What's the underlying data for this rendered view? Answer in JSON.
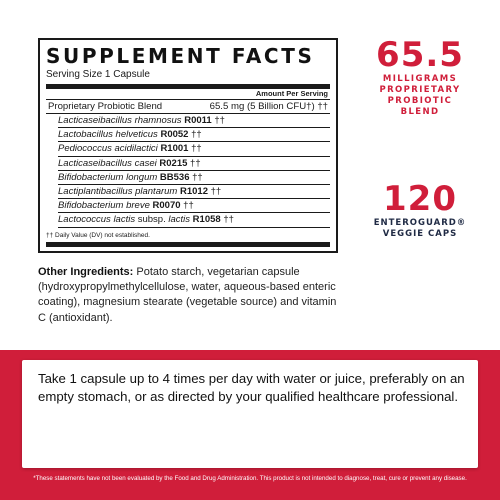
{
  "facts": {
    "title": "SUPPLEMENT FACTS",
    "serving": "Serving Size 1 Capsule",
    "amount_header": "Amount Per Serving",
    "blend_name": "Proprietary Probiotic Blend",
    "blend_amount": "65.5 mg (5 Billion CFU†) ††",
    "strains": [
      {
        "sci": "Lacticaseibacillus rhamnosus",
        "code": "R0011",
        "mark": "††"
      },
      {
        "sci": "Lactobacillus helveticus",
        "code": "R0052",
        "mark": "††"
      },
      {
        "sci": "Pediococcus acidilactici",
        "code": "R1001",
        "mark": "††"
      },
      {
        "sci": "Lacticaseibacillus casei",
        "code": "R0215",
        "mark": "††"
      },
      {
        "sci": "Bifidobacterium longum",
        "code": "BB536",
        "mark": "††"
      },
      {
        "sci": "Lactiplantibacillus plantarum",
        "code": "R1012",
        "mark": "††"
      },
      {
        "sci": "Bifidobacterium breve",
        "code": "R0070",
        "mark": "††"
      },
      {
        "sci": "Lactococcus lactis",
        "sub": " subsp. ",
        "sub2": "lactis",
        "code": "R1058",
        "mark": "††"
      }
    ],
    "footnote": "†† Daily Value (DV) not established."
  },
  "stat1": {
    "value": "65.5",
    "line1": "MILLIGRAMS",
    "line2": "PROPRIETARY",
    "line3": "PROBIOTIC",
    "line4": "BLEND"
  },
  "stat2": {
    "value": "120",
    "line1": "ENTEROGUARD® VEGGIE CAPS"
  },
  "other": {
    "label": "Other Ingredients:",
    "text": " Potato starch, vegetarian capsule (hydroxypropylmethylcellulose, water, aqueous-based enteric coating), magnesium stearate (vegetable source) and vitamin C (antioxidant)."
  },
  "directions": "Take 1 capsule up to 4 times per day with water or juice, preferably on an empty stomach, or as directed by your qualified healthcare professional.",
  "disclaimer": "*These statements have not been evaluated by the Food and Drug Administration. This product is not intended to diagnose, treat, cure or prevent any disease.",
  "colors": {
    "accent": "#d01e3a",
    "navy": "#1f2a44"
  }
}
